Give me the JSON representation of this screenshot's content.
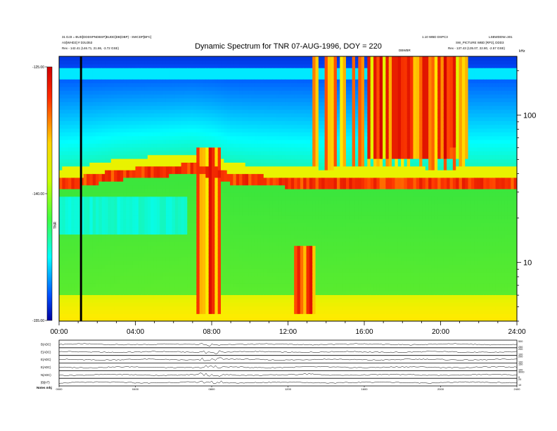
{
  "chart_data": {
    "type": "heatmap",
    "title": "Dynamic Spectrum for TNR 07-AUG-1996, DOY = 220",
    "header": {
      "left_line1": "31 DJ3 = BUD[DDDSPNDBSP]BUDD]DB(DBP) - SWCDP[BFC]",
      "left_line2": "AS[WHD3] # D3U353",
      "left_line3": "Rex  - 142.41 (146.71, 21.86, -3.72 GSE)",
      "right_line1": "1.10 WBD DSPC3",
      "right_line2": "LSBWDDW=301",
      "right_line3": "SW_PICTURE WBD [RP3], DDD3",
      "right_line4": "Rex  - 137.43 (135.07, 22.80, -2.57 GSE)",
      "center_note": "DBWBR"
    },
    "x_axis": {
      "unit": "hours UT",
      "range": [
        0,
        24
      ],
      "tick_values": [
        0,
        4,
        8,
        12,
        16,
        20,
        24
      ],
      "tick_labels": [
        "00:00",
        "04:00",
        "08:00",
        "12:00",
        "16:00",
        "20:00",
        "24:00"
      ]
    },
    "y_axis": {
      "label": "kHz",
      "scale": "log",
      "range": [
        4,
        250
      ],
      "tick_values": [
        10,
        100
      ],
      "tick_labels": [
        "10",
        "100"
      ]
    },
    "colorbar": {
      "label": "TNR",
      "range": [
        -155,
        -125
      ],
      "tick_values": [
        -125,
        -140,
        -155
      ],
      "tick_labels": [
        "-125.00",
        "-140.00",
        "-155.00"
      ]
    },
    "features": [
      {
        "kind": "plasma-line",
        "freq_khz": [
          33,
          34,
          36,
          38,
          39,
          40,
          41,
          42,
          40,
          36,
          35,
          34,
          33,
          34,
          33,
          34
        ],
        "hours": [
          0,
          1,
          2,
          3,
          4,
          5,
          6,
          7,
          8,
          9,
          10,
          12,
          14,
          16,
          20,
          24
        ]
      },
      {
        "kind": "burst",
        "start_h": 7.2,
        "end_h": 8.5,
        "min_khz": 4.5,
        "max_khz": 60
      },
      {
        "kind": "burst",
        "start_h": 12.4,
        "end_h": 13.4,
        "min_khz": 4.5,
        "max_khz": 13
      },
      {
        "kind": "burst",
        "start_h": 16.2,
        "end_h": 21.5,
        "min_khz": 50,
        "max_khz": 250
      },
      {
        "kind": "burst",
        "start_h": 20.3,
        "end_h": 20.9,
        "min_khz": 60,
        "max_khz": 250
      }
    ],
    "marker_hour": 1.15,
    "subpanels": [
      {
        "label": "B(ADC)",
        "right_ticks": [
          "500",
          "250"
        ]
      },
      {
        "label": "E(ADC)",
        "right_ticks": [
          "200",
          "100"
        ]
      },
      {
        "label": "E(ADC)",
        "right_ticks": [
          "200",
          "100"
        ]
      },
      {
        "label": "E(ADC)",
        "right_ticks": [
          "150",
          "100"
        ]
      },
      {
        "label": "N(ADC)",
        "right_ticks": [
          "3000",
          "0"
        ]
      },
      {
        "label": "|B|(nT)",
        "right_ticks": [
          "20",
          "10"
        ]
      }
    ],
    "bottom_ticks": [
      "0000",
      "0400",
      "0800",
      "1200",
      "1600",
      "2000",
      "2400"
    ],
    "footer_label": "Notes  mhj"
  }
}
